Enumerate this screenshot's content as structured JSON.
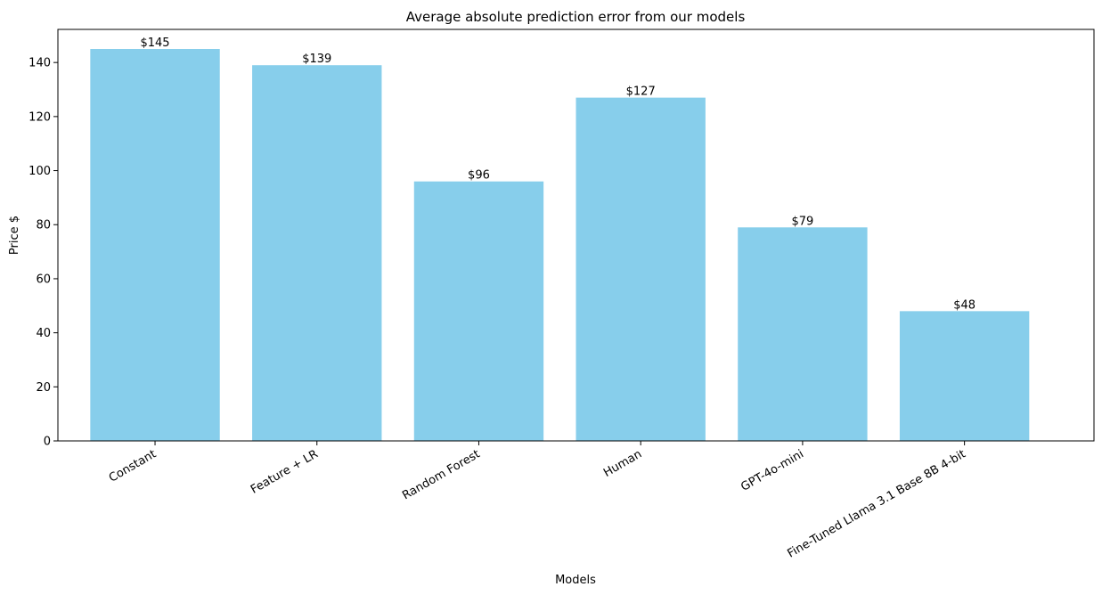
{
  "chart_data": {
    "type": "bar",
    "title": "Average absolute prediction error from our models",
    "xlabel": "Models",
    "ylabel": "Price $",
    "categories": [
      "Constant",
      "Feature + LR",
      "Random Forest",
      "Human",
      "GPT-4o-mini",
      "Fine-Tuned Llama 3.1 Base 8B 4-bit"
    ],
    "values": [
      145,
      139,
      96,
      127,
      79,
      48
    ],
    "data_labels": [
      "$145",
      "$139",
      "$96",
      "$127",
      "$79",
      "$48"
    ],
    "ylim": [
      0,
      152.25
    ],
    "yticks": [
      0,
      20,
      40,
      60,
      80,
      100,
      120,
      140
    ],
    "bar_color": "#87CEEB",
    "grid": false,
    "legend": null
  }
}
